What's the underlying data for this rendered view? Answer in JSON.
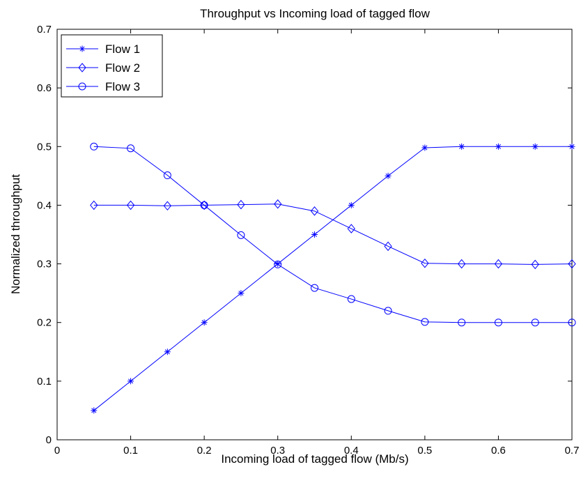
{
  "chart_data": {
    "type": "line",
    "title": "Throughput vs Incoming load of tagged flow",
    "xlabel": "Incoming load of tagged flow (Mb/s)",
    "ylabel": "Normalized throughput",
    "xlim": [
      0,
      0.7
    ],
    "ylim": [
      0,
      0.7
    ],
    "x_ticks": [
      "0",
      "0.1",
      "0.2",
      "0.3",
      "0.4",
      "0.5",
      "0.6",
      "0.7"
    ],
    "y_ticks": [
      "0",
      "0.1",
      "0.2",
      "0.3",
      "0.4",
      "0.5",
      "0.6",
      "0.7"
    ],
    "grid": false,
    "legend_position": "top-left",
    "x": [
      0.05,
      0.1,
      0.15,
      0.2,
      0.25,
      0.3,
      0.35,
      0.4,
      0.45,
      0.5,
      0.55,
      0.6,
      0.65,
      0.7
    ],
    "series": [
      {
        "name": "Flow 1",
        "marker": "asterisk",
        "color": "#0000ff",
        "values": [
          0.05,
          0.1,
          0.15,
          0.2,
          0.25,
          0.3,
          0.35,
          0.4,
          0.45,
          0.498,
          0.5,
          0.5,
          0.5,
          0.5
        ]
      },
      {
        "name": "Flow 2",
        "marker": "diamond",
        "color": "#0000ff",
        "values": [
          0.4,
          0.4,
          0.399,
          0.4,
          0.401,
          0.402,
          0.39,
          0.36,
          0.33,
          0.301,
          0.3,
          0.3,
          0.299,
          0.3
        ]
      },
      {
        "name": "Flow 3",
        "marker": "circle",
        "color": "#0000ff",
        "values": [
          0.5,
          0.497,
          0.451,
          0.4,
          0.349,
          0.299,
          0.259,
          0.24,
          0.22,
          0.201,
          0.2,
          0.2,
          0.2,
          0.2
        ]
      }
    ]
  }
}
